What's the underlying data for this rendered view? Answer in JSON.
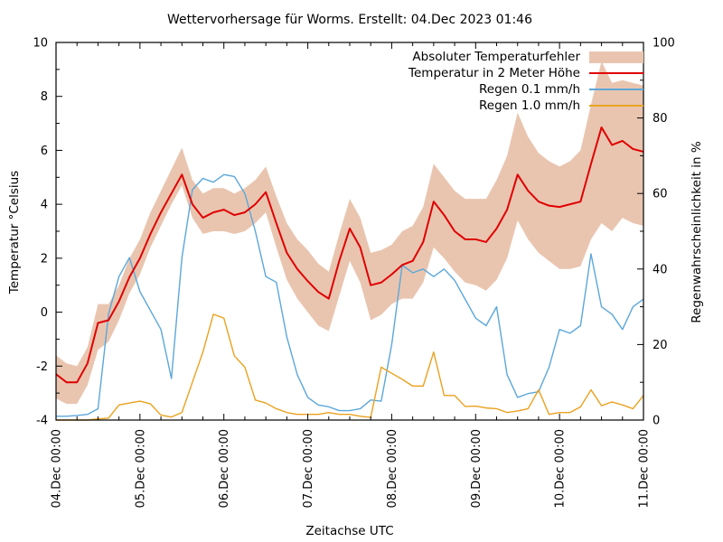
{
  "title": "Wettervorhersage für Worms. Erstellt: 04.Dec 2023 01:46",
  "axes": {
    "x": {
      "label": "Zeitachse UTC",
      "tick_labels": [
        "04.Dec 00:00",
        "05.Dec 00:00",
        "06.Dec 00:00",
        "07.Dec 00:00",
        "08.Dec 00:00",
        "09.Dec 00:00",
        "10.Dec 00:00",
        "11.Dec 00:00"
      ],
      "major_step_hours": 24,
      "minor_step_hours": 6
    },
    "y_left": {
      "label": "Temperatur °Celsius",
      "min": -4,
      "max": 10,
      "major_step": 2,
      "minor_step": 1,
      "tick_labels": [
        "-4",
        "-2",
        "0",
        "2",
        "4",
        "6",
        "8",
        "10"
      ]
    },
    "y_right": {
      "label": "Regenwahrscheinlichkeit in %",
      "min": 0,
      "max": 100,
      "major_step": 20,
      "minor_step": 10,
      "tick_labels": [
        "0",
        "20",
        "40",
        "60",
        "80",
        "100"
      ]
    }
  },
  "legend": [
    {
      "label": "Absoluter Temperaturfehler",
      "type": "band",
      "color": "#e9c5b0"
    },
    {
      "label": "Temperatur in 2 Meter Höhe",
      "type": "line",
      "color": "#e00000"
    },
    {
      "label": "Regen 0.1 mm/h",
      "type": "line",
      "color": "#5ca7da"
    },
    {
      "label": "Regen 1.0 mm/h",
      "type": "line",
      "color": "#eaa220"
    }
  ],
  "colors": {
    "band": "#e9c5b0",
    "temperature": "#e00000",
    "rain01": "#5ca7da",
    "rain10": "#eaa220",
    "axis": "#000000",
    "background": "#ffffff"
  },
  "chart_data": {
    "type": "line",
    "title": "Wettervorhersage für Worms. Erstellt: 04.Dec 2023 01:46",
    "xlabel": "Zeitachse UTC",
    "ylabel_left": "Temperatur °Celsius",
    "ylabel_right": "Regenwahrscheinlichkeit in %",
    "ylim_left": [
      -4,
      10
    ],
    "ylim_right": [
      0,
      100
    ],
    "x_range_hours": [
      0,
      168
    ],
    "x_start": "04.Dec 2023 00:00 UTC",
    "x_end": "11.Dec 2023 00:00 UTC",
    "x_unit": "hours since 04.Dec 2023 00:00 UTC",
    "grid": false,
    "legend_position": "top-right-inside",
    "x": [
      0,
      3,
      6,
      9,
      12,
      15,
      18,
      21,
      24,
      27,
      30,
      33,
      36,
      39,
      42,
      45,
      48,
      51,
      54,
      57,
      60,
      63,
      66,
      69,
      72,
      75,
      78,
      81,
      84,
      87,
      90,
      93,
      96,
      99,
      102,
      105,
      108,
      111,
      114,
      117,
      120,
      123,
      126,
      129,
      132,
      135,
      138,
      141,
      144,
      147,
      150,
      153,
      156,
      159,
      162,
      165,
      168
    ],
    "series": [
      {
        "name": "Absoluter Temperaturfehler",
        "kind": "band",
        "axis": "left",
        "upper": [
          -1.6,
          -1.9,
          -2.0,
          -1.3,
          0.3,
          0.3,
          1.0,
          2.0,
          2.7,
          3.7,
          4.5,
          5.3,
          6.1,
          4.9,
          4.4,
          4.6,
          4.6,
          4.4,
          4.6,
          4.9,
          5.4,
          4.3,
          3.3,
          2.7,
          2.3,
          1.8,
          1.5,
          2.9,
          4.2,
          3.5,
          2.2,
          2.3,
          2.5,
          3.0,
          3.2,
          3.9,
          5.5,
          5.0,
          4.5,
          4.2,
          4.2,
          4.2,
          4.9,
          5.8,
          7.4,
          6.5,
          5.9,
          5.6,
          5.4,
          5.6,
          6.0,
          7.7,
          9.3,
          8.5,
          8.6,
          8.5,
          8.4
        ],
        "lower": [
          -3.2,
          -3.4,
          -3.4,
          -2.7,
          -1.4,
          -1.1,
          -0.3,
          0.7,
          1.4,
          2.4,
          3.2,
          4.0,
          4.7,
          3.5,
          2.9,
          3.0,
          3.0,
          2.9,
          3.0,
          3.3,
          3.7,
          2.4,
          1.2,
          0.5,
          0.0,
          -0.5,
          -0.7,
          0.6,
          1.9,
          1.1,
          -0.3,
          -0.1,
          0.3,
          0.5,
          0.5,
          1.1,
          2.4,
          2.0,
          1.5,
          1.1,
          1.0,
          0.8,
          1.2,
          2.0,
          3.4,
          2.7,
          2.2,
          1.9,
          1.6,
          1.6,
          1.7,
          2.7,
          3.3,
          3.0,
          3.5,
          3.3,
          3.2
        ]
      },
      {
        "name": "Temperatur in 2 Meter Höhe",
        "kind": "line",
        "axis": "left",
        "unit": "°C",
        "values": [
          -2.3,
          -2.6,
          -2.6,
          -1.9,
          -0.4,
          -0.3,
          0.4,
          1.3,
          2.0,
          2.9,
          3.7,
          4.4,
          5.1,
          4.0,
          3.5,
          3.7,
          3.8,
          3.6,
          3.7,
          4.0,
          4.45,
          3.3,
          2.2,
          1.6,
          1.15,
          0.75,
          0.5,
          1.9,
          3.1,
          2.4,
          1.0,
          1.1,
          1.4,
          1.75,
          1.9,
          2.6,
          4.1,
          3.6,
          3.0,
          2.7,
          2.7,
          2.6,
          3.1,
          3.8,
          5.1,
          4.5,
          4.1,
          3.95,
          3.9,
          4.0,
          4.1,
          5.5,
          6.85,
          6.2,
          6.35,
          6.05,
          5.95
        ]
      },
      {
        "name": "Regen 0.1 mm/h",
        "kind": "line",
        "axis": "right",
        "unit": "%",
        "values": [
          1,
          1,
          1.2,
          1.5,
          3,
          28,
          38,
          43,
          34,
          29,
          24,
          11,
          43,
          61,
          64,
          63,
          65,
          64.5,
          60,
          50,
          38,
          36.5,
          22,
          12,
          6,
          4,
          3.5,
          2.5,
          2.5,
          3,
          5.3,
          5,
          20,
          41,
          39,
          40,
          38,
          40,
          37,
          32,
          27,
          25,
          30,
          12,
          6,
          7,
          7.5,
          14,
          24,
          23,
          25,
          44,
          30,
          28,
          24,
          30,
          32
        ]
      },
      {
        "name": "Regen 1.0 mm/h",
        "kind": "line",
        "axis": "right",
        "unit": "%",
        "values": [
          0,
          0,
          0,
          0,
          0.3,
          0.5,
          4,
          4.5,
          5,
          4.3,
          1.3,
          0.8,
          2,
          10,
          18,
          28,
          27,
          17,
          14,
          5.3,
          4.5,
          3,
          2,
          1.5,
          1.5,
          1.5,
          2,
          1.5,
          1.5,
          1,
          0.7,
          14,
          12.4,
          10.8,
          9,
          9,
          18,
          6.5,
          6.5,
          3.6,
          3.7,
          3.2,
          3,
          2,
          2.4,
          3,
          8,
          1.5,
          2,
          2,
          3.5,
          8,
          3.8,
          4.8,
          4,
          3,
          6.5
        ]
      }
    ]
  }
}
